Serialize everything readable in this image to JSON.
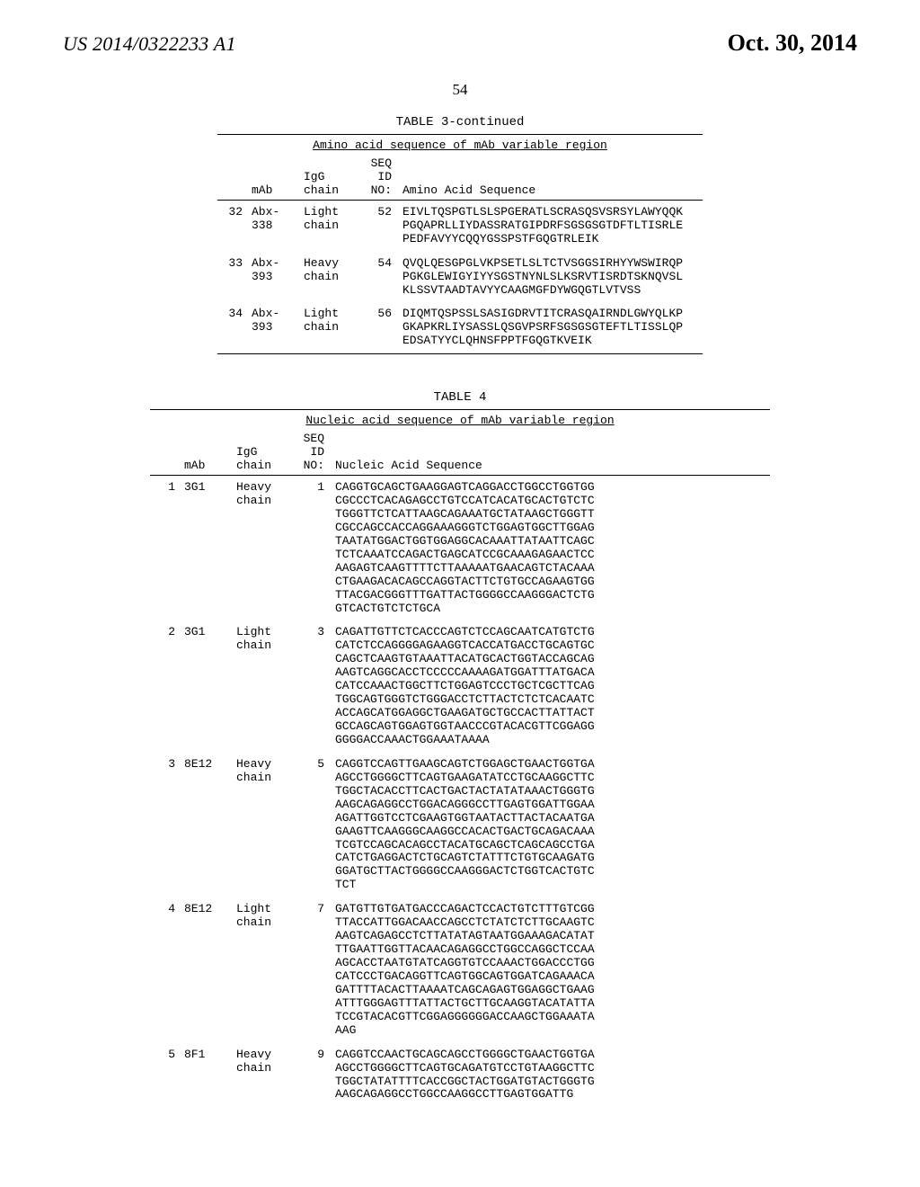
{
  "header": {
    "pub_number": "US 2014/0322233 A1",
    "pub_date": "Oct. 30, 2014",
    "page_number": "54"
  },
  "table3": {
    "caption": "TABLE 3-continued",
    "title": "Amino acid sequence of mAb variable region",
    "headers": {
      "mab": "mAb",
      "igg": "IgG chain",
      "seqid": "SEQ ID NO:",
      "seq": "Amino Acid Sequence"
    },
    "rows": [
      {
        "idx": "32",
        "mab": "Abx-338",
        "chain": "Light chain",
        "seqid": "52",
        "seq": "EIVLTQSPGTLSLSPGERATLSCRASQSVSRSYLAWYQQ KPGQAPRLLIYDASSRATGIPDRFSGSGSGTDFTLTISRLE PEDFAVYYCQQYGSSPSTFGQGTRLEIK"
      },
      {
        "idx": "33",
        "mab": "Abx-393",
        "chain": "Heavy chain",
        "seqid": "54",
        "seq": "QVQLQESGPGLVKPSETLSLTCTVSGGSIRHYYWSWIRQ PPGKGLEWIGYIYYSGSTNYNLSLKSRVTISRDTSKNQVS LKLSSVTAADTAVYYCAAGMGFDYWGQGTLVTVSS"
      },
      {
        "idx": "34",
        "mab": "Abx-393",
        "chain": "Light chain",
        "seqid": "56",
        "seq": "DIQMTQSPSSLSASIGDRVTITCRASQAIRNDLGWYQLKP GKAPKRLIYSASSLQSGVPSRFSGSGSGTEFTLTISSLQPE DSATYYCLQHNSFPPTFGQGTKVEIK"
      }
    ]
  },
  "table4": {
    "caption": "TABLE 4",
    "title": "Nucleic acid sequence of mAb variable region",
    "headers": {
      "mab": "mAb",
      "igg": "IgG chain",
      "seqid": "SEQ ID NO:",
      "seq": "Nucleic Acid Sequence"
    },
    "rows": [
      {
        "idx": "1",
        "mab": "3G1",
        "chain": "Heavy chain",
        "seqid": "1",
        "seq": "CAGGTGCAGCTGAAGGAGTCAGGACCTGGCCTGGTG GCGCCCTCACAGAGCCTGTCCATCACATGCACTGTC TCTGGGTTCTCATTAAGCAGAAATGCTATAAGCTGG GTTCGCCAGCCACCAGGAAAGGGTCTGGAGTGGCTT GGAGTAATATGGACTGGTGGAGGCACAAATTATAAT TCAGCTCTCAAATCCAGACTGAGCATCCGCAAAGAG AACTCCAAGAGTCAAGTTTTCTTAAAAATGAACAGT CTACAAACTGAAGACACAGCCAGGTACTTCTGTGCC AGAAGTGGTTACGACGGGTTTGATTACTGGGGCCAA GGGACTCTGGTCACTGTCTCTGCA"
      },
      {
        "idx": "2",
        "mab": "3G1",
        "chain": "Light chain",
        "seqid": "3",
        "seq": "CAGATTGTTCTCACCCAGTCTCCAGCAATCATGTCTG CATCTCCAGGGGAGAAGGTCACCATGACCTGCAGTG CCAGCTCAAGTGTAAATTACATGCACTGGTACCAGC AGAAGTCAGGCACCTCCCCCAAAAGATGGATTTATG ACACATCCAAACTGGCTTCTGGAGTCCCTGCTCGCTT CAGTGGCAGTGGGTCTGGGACCTCTTACTCTCTCAC AATCACCAGCATGGAGGCTGAAGATGCTGCCACTTA TTACTGCCAGCAGTGGAGTGGTAACCCGTACACGTT CGGAGGGGGGACCAAACTGGAAATAAAA"
      },
      {
        "idx": "3",
        "mab": "8E12",
        "chain": "Heavy chain",
        "seqid": "5",
        "seq": "CAGGTCCAGTTGAAGCAGTCTGGAGCTGAACTGGTG AAGCCTGGGGCTTCAGTGAAGATATCCTGCAAGGCT TCTGGCTACACCTTCACTGACTACTATATAAACTGGG TGAAGCAGAGGCCTGGACAGGGCCTTGAGTGGATTG GAAAGATTGGTCCTCGAAGTGGTAATACTTACTACA ATGAGAAGTTCAAGGGCAAGGCCACACTGACTGCA GACAAATCGTCCAGCACAGCCTACATGCAGCTCAGC AGCCTGACATCTGAGGACTCTGCAGTCTATTTCTGTG CAAGATGGGATGCTTACTGGGGCCAAGGGACTCTGG TCACTGTCTCT"
      },
      {
        "idx": "4",
        "mab": "8E12",
        "chain": "Light chain",
        "seqid": "7",
        "seq": "GATGTTGTGATGACCCAGACTCCACTGTCTTTGTCGG TTACCATTGGACAACCAGCCTCTATCTCTTGCAAGTC AAGTCAGAGCCTCTTATATAGTAATGGAAAGACATA TTTGAATTGGTTACAACAGAGGCCTGGCCAGGCTCC AAAGCACCTAATGTATCAGGTGTCCAAACTGGACCC TGGCATCCCTGACAGGTTCAGTGGCAGTGGATCAGA AACAGATTTTACACTTAAAATCAGCAGAGTGGAGGC TGAAGATTTGGGAGTTTATTACTGCTTGCAAGGTAC ATATTATCCGTACACGTTCGGAGGGGGGACCAAGCT GGAAATAAAG"
      },
      {
        "idx": "5",
        "mab": "8F1",
        "chain": "Heavy chain",
        "seqid": "9",
        "seq": "CAGGTCCAACTGCAGCAGCCTGGGGCTGAACTGGTG AAGCCTGGGGCTTCAGTGCAGATGTCCTGTAAGGCT TCTGGCTATATTTTCACCGGCTACTGGATGTACTGGG TGAAGCAGAGGCCTGGCCAAGGCCTTGAGTGGATTG"
      }
    ]
  }
}
